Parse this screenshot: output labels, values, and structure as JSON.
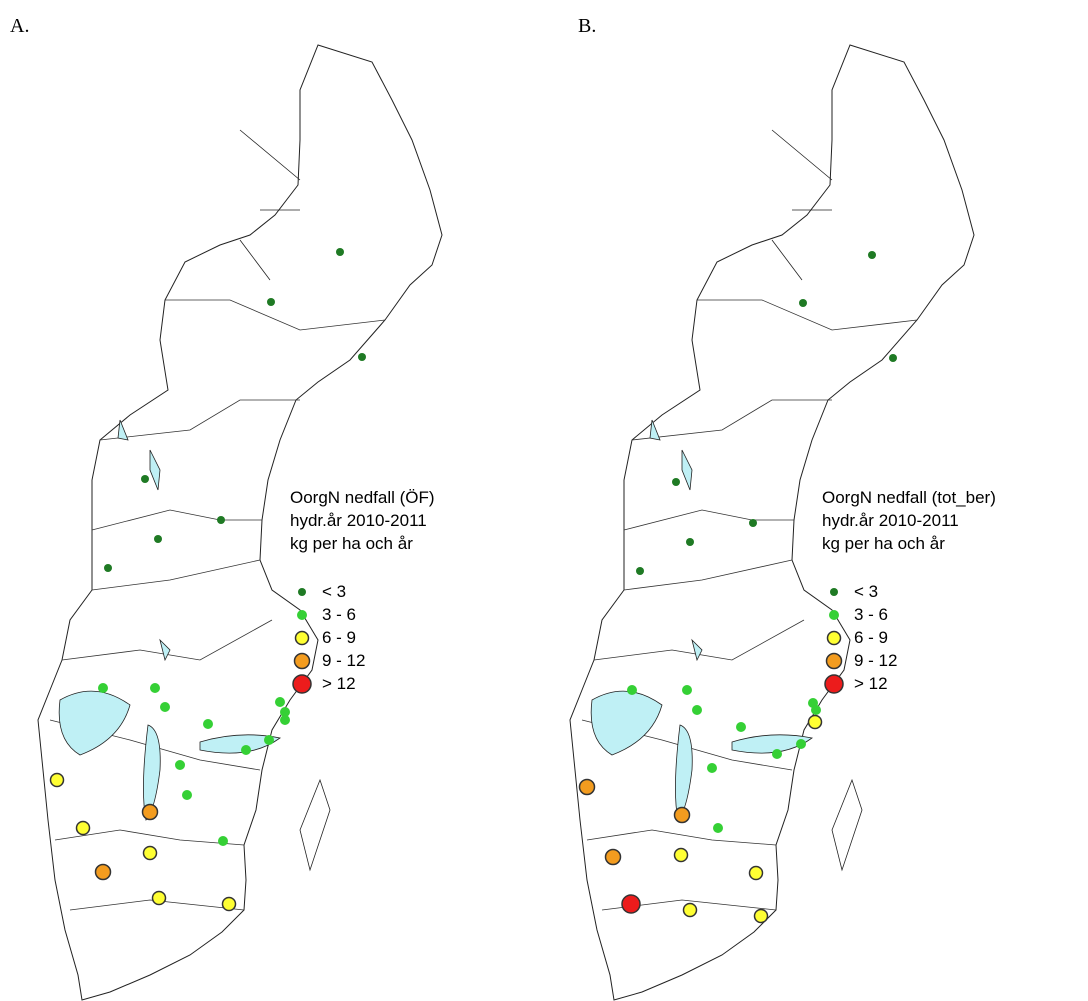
{
  "classes": [
    {
      "label": "< 3",
      "color": "#1f7a24"
    },
    {
      "label": "3 - 6",
      "color": "#35d035"
    },
    {
      "label": "6 - 9",
      "color": "#ffff33"
    },
    {
      "label": "9 - 12",
      "color": "#f39c1f"
    },
    {
      "label": "> 12",
      "color": "#ec1c1c"
    }
  ],
  "maps": [
    {
      "label": "A.",
      "legend_title": [
        "OorgN nedfall (ÖF)",
        "hydr.år 2010-2011",
        "kg per ha och år"
      ],
      "points": [
        0,
        0,
        0,
        0,
        0,
        0,
        0,
        1,
        1,
        1,
        1,
        1,
        1,
        1,
        1,
        1,
        1,
        1,
        1,
        2,
        2,
        2,
        2,
        2,
        3,
        3
      ]
    },
    {
      "label": "B.",
      "legend_title": [
        "OorgN nedfall (tot_ber)",
        "hydr.år 2010-2011",
        "kg per ha och år"
      ],
      "points": [
        0,
        0,
        0,
        0,
        0,
        0,
        0,
        1,
        1,
        1,
        1,
        1,
        1,
        1,
        1,
        1,
        1,
        2,
        2,
        2,
        2,
        2,
        3,
        3,
        3,
        4
      ]
    }
  ]
}
